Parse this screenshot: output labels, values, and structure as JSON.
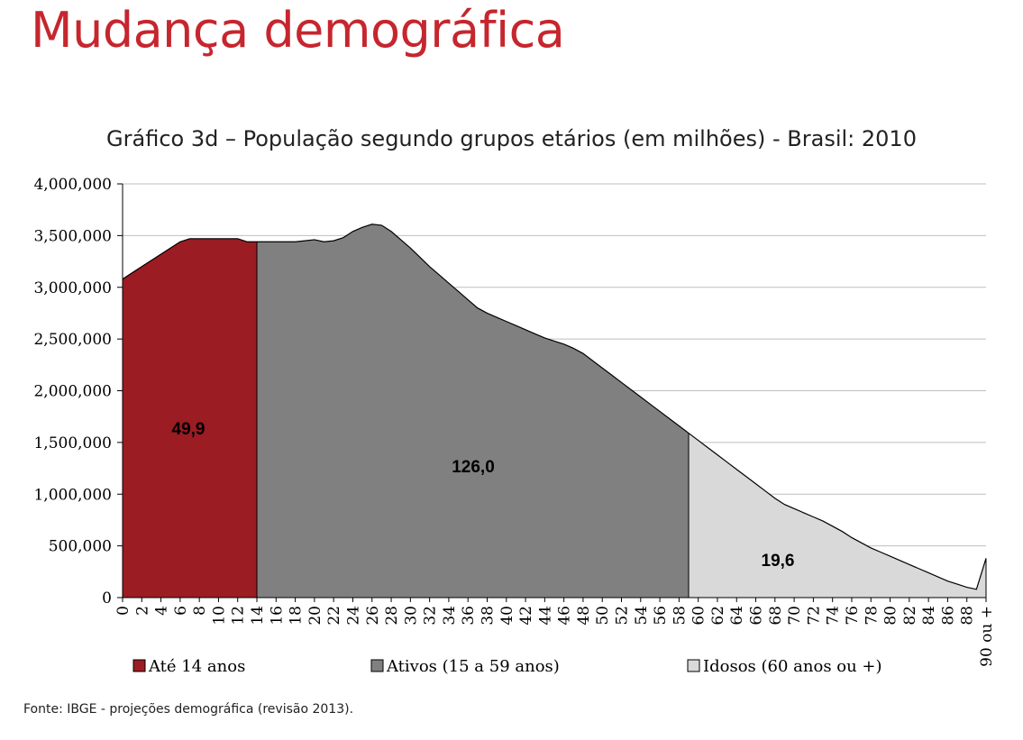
{
  "slide_title": "Mudança demográfica",
  "colors": {
    "title": "#c6262e",
    "age_0_14": "#9b1c22",
    "age_15_59": "#808080",
    "age_60_plus": "#d9d9d9",
    "gridline": "#bfbfbf"
  },
  "source": "Fonte: IBGE - projeções demográfica (revisão 2013).",
  "chart_data": {
    "type": "area",
    "title": "Gráfico 3d – População segundo grupos etários (em milhões) - Brasil: 2010",
    "xlabel": "",
    "ylabel": "",
    "ylim": [
      0,
      4000000
    ],
    "y_ticks": [
      "0",
      "500,000",
      "1,000,000",
      "1,500,000",
      "2,000,000",
      "2,500,000",
      "3,000,000",
      "3,500,000",
      "4,000,000"
    ],
    "x_tick_labels": [
      "0",
      "2",
      "4",
      "6",
      "8",
      "10",
      "12",
      "14",
      "16",
      "18",
      "20",
      "22",
      "24",
      "26",
      "28",
      "30",
      "32",
      "34",
      "36",
      "38",
      "40",
      "42",
      "44",
      "46",
      "48",
      "50",
      "52",
      "54",
      "56",
      "58",
      "60",
      "62",
      "64",
      "66",
      "68",
      "70",
      "72",
      "74",
      "76",
      "78",
      "80",
      "82",
      "84",
      "86",
      "88",
      "90 ou +"
    ],
    "grid": true,
    "legend_position": "bottom",
    "x": [
      "0",
      "1",
      "2",
      "3",
      "4",
      "5",
      "6",
      "7",
      "8",
      "9",
      "10",
      "11",
      "12",
      "13",
      "14",
      "15",
      "16",
      "17",
      "18",
      "19",
      "20",
      "21",
      "22",
      "23",
      "24",
      "25",
      "26",
      "27",
      "28",
      "29",
      "30",
      "31",
      "32",
      "33",
      "34",
      "35",
      "36",
      "37",
      "38",
      "39",
      "40",
      "41",
      "42",
      "43",
      "44",
      "45",
      "46",
      "47",
      "48",
      "49",
      "50",
      "51",
      "52",
      "53",
      "54",
      "55",
      "56",
      "57",
      "58",
      "59",
      "60",
      "61",
      "62",
      "63",
      "64",
      "65",
      "66",
      "67",
      "68",
      "69",
      "70",
      "71",
      "72",
      "73",
      "74",
      "75",
      "76",
      "77",
      "78",
      "79",
      "80",
      "81",
      "82",
      "83",
      "84",
      "85",
      "86",
      "87",
      "88",
      "89",
      "90 ou +"
    ],
    "values": [
      3080000,
      3140000,
      3200000,
      3260000,
      3320000,
      3380000,
      3440000,
      3470000,
      3470000,
      3470000,
      3470000,
      3470000,
      3470000,
      3440000,
      3440000,
      3440000,
      3440000,
      3440000,
      3440000,
      3450000,
      3460000,
      3440000,
      3450000,
      3480000,
      3540000,
      3580000,
      3610000,
      3600000,
      3540000,
      3460000,
      3380000,
      3290000,
      3200000,
      3120000,
      3040000,
      2960000,
      2880000,
      2800000,
      2750000,
      2710000,
      2670000,
      2630000,
      2590000,
      2550000,
      2510000,
      2480000,
      2450000,
      2410000,
      2360000,
      2290000,
      2220000,
      2150000,
      2080000,
      2010000,
      1940000,
      1870000,
      1800000,
      1730000,
      1660000,
      1590000,
      1520000,
      1450000,
      1380000,
      1310000,
      1240000,
      1170000,
      1100000,
      1030000,
      960000,
      900000,
      860000,
      820000,
      780000,
      740000,
      690000,
      640000,
      580000,
      530000,
      480000,
      440000,
      400000,
      360000,
      320000,
      280000,
      240000,
      200000,
      160000,
      130000,
      100000,
      80000,
      380000
    ],
    "series": [
      {
        "name": "Até 14 anos",
        "range": [
          0,
          14
        ],
        "total_label": "49,9"
      },
      {
        "name": "Ativos (15 a 59 anos)",
        "range": [
          14,
          59
        ],
        "total_label": "126,0"
      },
      {
        "name": "Idosos (60 anos ou +)",
        "range": [
          59,
          90
        ],
        "total_label": "19,6"
      }
    ]
  }
}
